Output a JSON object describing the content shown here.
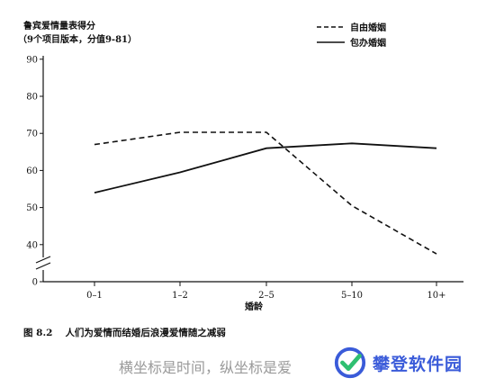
{
  "chart_data": {
    "type": "line",
    "title": "鲁宾爱情量表得分",
    "subtitle": "（9个项目版本，分值9-81）",
    "xlabel": "婚龄",
    "ylabel": "",
    "categories": [
      "0–1",
      "1–2",
      "2–5",
      "5–10",
      "10+"
    ],
    "yticks": [
      0,
      40,
      50,
      60,
      70,
      80,
      90
    ],
    "ylim": [
      35,
      90
    ],
    "axis_break": true,
    "grid": false,
    "legend_position": "top-right",
    "series": [
      {
        "name": "自由婚姻",
        "style": "dashed",
        "values": [
          67,
          70.3,
          70.3,
          50.5,
          37.5
        ]
      },
      {
        "name": "包办婚姻",
        "style": "solid",
        "values": [
          54,
          59.5,
          66,
          67.3,
          66
        ]
      }
    ]
  },
  "caption": {
    "figure_no": "图 8.2",
    "text": "人们为爱情而结婚后浪漫爱情随之减弱"
  },
  "overlay_subtitle": "横坐标是时间，纵坐标是爱",
  "watermark": {
    "text": "攀登软件园",
    "colors": {
      "blue": "#3a5bd9",
      "green": "#2fbf71"
    }
  }
}
